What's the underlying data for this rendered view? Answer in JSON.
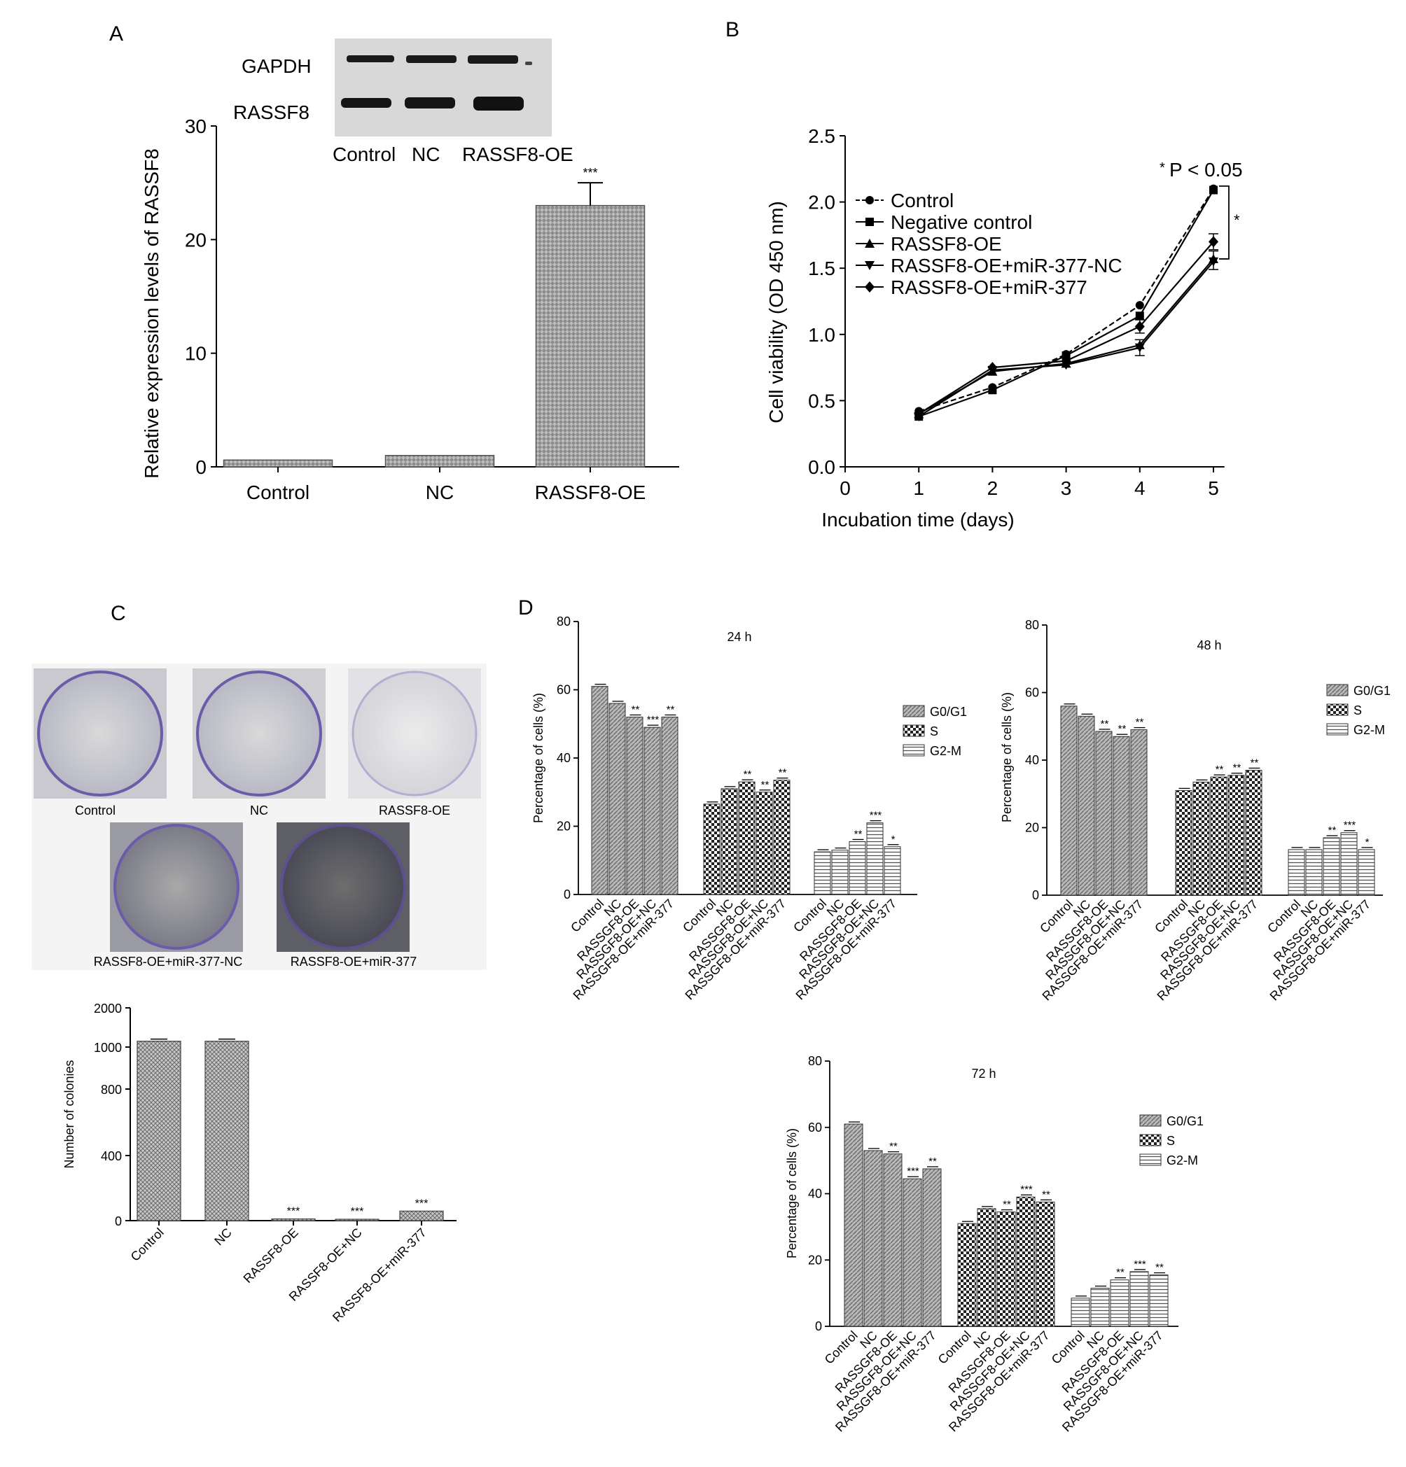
{
  "panel_labels": [
    "A",
    "B",
    "C",
    "D"
  ],
  "colors": {
    "axis": "#000000",
    "bar_fill": "#9a9a9a",
    "blot_bg": "#dcdcdc",
    "band": "#1a1a1a",
    "dish_rim": "#6a5ca8",
    "dish_bg": "#e8e8e8"
  },
  "panelA": {
    "blot_labels": [
      "GAPDH",
      "RASSF8"
    ],
    "blot_lanes": [
      "Control",
      "NC",
      "RASSF8-OE"
    ]
  },
  "panelC": {
    "dish_labels": [
      "Control",
      "NC",
      "RASSF8-OE",
      "RASSF8-OE+miR-377-NC",
      "RASSF8-OE+miR-377"
    ]
  },
  "chart_data": [
    {
      "id": "A",
      "type": "bar",
      "categories": [
        "Control",
        "NC",
        "RASSF8-OE"
      ],
      "values": [
        0.6,
        1.0,
        23.0
      ],
      "errors": [
        0.1,
        0.1,
        2.0
      ],
      "significance": [
        "",
        "",
        "***"
      ],
      "ylabel": "Relative expression levels of RASSF8",
      "ylim": [
        0,
        30
      ],
      "yticks": [
        0,
        10,
        20,
        30
      ]
    },
    {
      "id": "B",
      "type": "line",
      "x": [
        1,
        2,
        3,
        4,
        5
      ],
      "series": [
        {
          "name": "Control",
          "marker": "circle",
          "dashed": true,
          "values": [
            0.42,
            0.6,
            0.85,
            1.22,
            2.1
          ]
        },
        {
          "name": "Negative control",
          "marker": "square",
          "dashed": false,
          "values": [
            0.38,
            0.58,
            0.84,
            1.14,
            2.09
          ]
        },
        {
          "name": "RASSF8-OE",
          "marker": "triangle",
          "dashed": false,
          "values": [
            0.4,
            0.72,
            0.78,
            0.92,
            1.57
          ]
        },
        {
          "name": "RASSF8-OE+miR-377-NC",
          "marker": "triangle-down",
          "dashed": false,
          "values": [
            0.38,
            0.73,
            0.77,
            0.9,
            1.55
          ]
        },
        {
          "name": "RASSF8-OE+miR-377",
          "marker": "diamond",
          "dashed": false,
          "values": [
            0.4,
            0.75,
            0.8,
            1.06,
            1.7
          ]
        }
      ],
      "annotation": "P < 0.05",
      "annotation_star": "*",
      "bracket_star": "*",
      "xlabel": "Incubation time (days)",
      "ylabel": "Cell viability (OD 450 nm)",
      "xlim": [
        0,
        5
      ],
      "ylim": [
        0,
        2.5
      ],
      "xticks": [
        0,
        1,
        2,
        3,
        4,
        5
      ],
      "yticks": [
        "0.0",
        "0.5",
        "1.0",
        "1.5",
        "2.0",
        "2.5"
      ],
      "legend": "top-left"
    },
    {
      "id": "C",
      "type": "bar",
      "categories": [
        "Control",
        "NC",
        "RASSF8-OE",
        "RASSF8-OE+NC",
        "RASSF8-OE+miR-377"
      ],
      "values": [
        1150,
        1150,
        10,
        8,
        55
      ],
      "significance": [
        "",
        "",
        "***",
        "***",
        "***"
      ],
      "ylabel": "Number of colonies",
      "yticks": [
        "0",
        "400",
        "800",
        "1000",
        "2000"
      ]
    },
    {
      "id": "D-24h",
      "type": "bar",
      "title": "24 h",
      "groups": [
        "G0/G1",
        "S",
        "G2-M"
      ],
      "categories": [
        "Control",
        "NC",
        "RASSGF8-OE",
        "RASSGF8-OE+NC",
        "RASSGF8-OE+miR-377"
      ],
      "values": [
        [
          61,
          56,
          52,
          49,
          52
        ],
        [
          26.5,
          31,
          33,
          30,
          33.5
        ],
        [
          12.5,
          13,
          15.5,
          21,
          14
        ]
      ],
      "significance": [
        [
          "",
          "",
          "**",
          "***",
          "**"
        ],
        [
          "",
          "",
          "**",
          "**",
          "**"
        ],
        [
          "",
          "",
          "**",
          "***",
          "*"
        ]
      ],
      "ylabel": "Percentage of cells (%)",
      "ylim": [
        0,
        80
      ],
      "yticks": [
        0,
        20,
        40,
        60,
        80
      ],
      "legend": "right"
    },
    {
      "id": "D-48h",
      "type": "bar",
      "title": "48 h",
      "groups": [
        "G0/G1",
        "S",
        "G2-M"
      ],
      "categories": [
        "Control",
        "NC",
        "RASSGF8-OE",
        "RASSGF8-OE+NC",
        "RASSGF8-OE+miR-377"
      ],
      "values": [
        [
          56,
          53,
          48.5,
          47,
          49
        ],
        [
          31,
          33.5,
          35,
          35.5,
          37
        ],
        [
          13.5,
          13.5,
          17,
          18.5,
          13.5
        ]
      ],
      "significance": [
        [
          "",
          "",
          "**",
          "**",
          "**"
        ],
        [
          "",
          "",
          "**",
          "**",
          "**"
        ],
        [
          "",
          "",
          "**",
          "***",
          "*"
        ]
      ],
      "ylabel": "Percentage of cells (%)",
      "ylim": [
        0,
        80
      ],
      "yticks": [
        0,
        20,
        40,
        60,
        80
      ],
      "legend": "top-right"
    },
    {
      "id": "D-72h",
      "type": "bar",
      "title": "72 h",
      "groups": [
        "G0/G1",
        "S",
        "G2-M"
      ],
      "categories": [
        "Control",
        "NC",
        "RASSGF8-OE",
        "RASSGF8-OE+NC",
        "RASSGF8-OE+miR-377"
      ],
      "values": [
        [
          61,
          53,
          52,
          44.5,
          47.5
        ],
        [
          31,
          35.5,
          34.5,
          39,
          37.5
        ],
        [
          8.5,
          11.5,
          14,
          16.5,
          15.5
        ]
      ],
      "significance": [
        [
          "",
          "",
          "**",
          "***",
          "**"
        ],
        [
          "",
          "",
          "**",
          "***",
          "**"
        ],
        [
          "",
          "",
          "**",
          "***",
          "**"
        ]
      ],
      "ylabel": "Percentage of cells (%)",
      "ylim": [
        0,
        80
      ],
      "yticks": [
        0,
        20,
        40,
        60,
        80
      ],
      "legend": "top-right"
    }
  ]
}
